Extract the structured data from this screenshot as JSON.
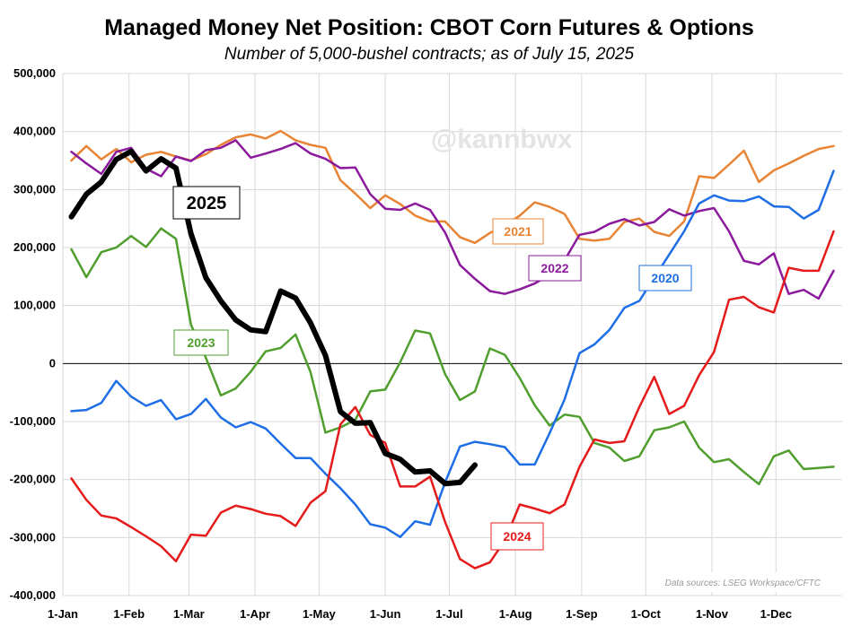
{
  "chart_data": {
    "type": "line",
    "title": "Managed Money Net Position: CBOT Corn Futures & Options",
    "subtitle": "Number of 5,000-bushel contracts; as of July 15, 2025",
    "watermark": "@kannbwx",
    "source": "Data sources: LSEG Workspace/CFTC",
    "ylim": [
      -400000,
      500000
    ],
    "y_ticks": [
      -400000,
      -300000,
      -200000,
      -100000,
      0,
      100000,
      200000,
      300000,
      400000,
      500000
    ],
    "y_tick_labels": [
      "-400,000",
      "-300,000",
      "-200,000",
      "-100,000",
      "0",
      "100,000",
      "200,000",
      "300,000",
      "400,000",
      "500,000"
    ],
    "x_ticks": [
      1,
      32,
      60,
      91,
      121,
      152,
      182,
      213,
      244,
      274,
      305,
      335
    ],
    "x_tick_labels": [
      "1-Jan",
      "1-Feb",
      "1-Mar",
      "1-Apr",
      "1-May",
      "1-Jun",
      "1-Jul",
      "1-Aug",
      "1-Sep",
      "1-Oct",
      "1-Nov",
      "1-Dec"
    ],
    "xlim": [
      1,
      366
    ],
    "series": [
      {
        "name": "2020",
        "color": "#1e6ee6",
        "width": 2.5,
        "label": "2020",
        "label_boxed": true,
        "x": [
          5,
          12,
          19,
          26,
          33,
          40,
          47,
          54,
          61,
          68,
          75,
          82,
          89,
          96,
          103,
          110,
          117,
          124,
          131,
          138,
          145,
          152,
          159,
          166,
          173,
          180,
          187,
          194,
          201,
          208,
          215,
          222,
          229,
          236,
          243,
          250,
          257,
          264,
          271,
          278,
          285,
          292,
          299,
          306,
          313,
          320,
          327,
          334,
          341,
          348,
          355,
          362
        ],
        "values": [
          -82000,
          -80000,
          -68000,
          -30000,
          -57000,
          -73000,
          -63000,
          -96000,
          -87000,
          -61000,
          -93000,
          -110000,
          -101000,
          -112000,
          -138000,
          -163000,
          -163000,
          -190000,
          -215000,
          -243000,
          -277000,
          -283000,
          -299000,
          -272000,
          -278000,
          -205000,
          -143000,
          -135000,
          -139000,
          -144000,
          -174000,
          -174000,
          -120000,
          -62000,
          18000,
          33000,
          58000,
          96000,
          108000,
          148000,
          188000,
          228000,
          276000,
          290000,
          281000,
          280000,
          288000,
          271000,
          270000,
          250000,
          265000,
          332000
        ]
      },
      {
        "name": "2021",
        "color": "#e88434",
        "width": 2.5,
        "label": "2021",
        "label_boxed": true,
        "x": [
          5,
          12,
          19,
          26,
          33,
          40,
          47,
          54,
          61,
          68,
          75,
          82,
          89,
          96,
          103,
          110,
          117,
          124,
          131,
          138,
          145,
          152,
          159,
          166,
          173,
          180,
          187,
          194,
          201,
          208,
          215,
          222,
          229,
          236,
          243,
          250,
          257,
          264,
          271,
          278,
          285,
          292,
          299,
          306,
          313,
          320,
          327,
          334,
          341,
          348,
          355,
          362
        ],
        "values": [
          350000,
          375000,
          352000,
          370000,
          347000,
          360000,
          365000,
          357000,
          350000,
          361000,
          377000,
          390000,
          395000,
          388000,
          401000,
          385000,
          377000,
          372000,
          316000,
          293000,
          268000,
          290000,
          275000,
          255000,
          245000,
          245000,
          218000,
          208000,
          225000,
          238000,
          255000,
          278000,
          270000,
          258000,
          215000,
          212000,
          215000,
          244000,
          250000,
          227000,
          220000,
          245000,
          323000,
          320000,
          343000,
          367000,
          313000,
          333000,
          345000,
          358000,
          370000,
          375000
        ]
      },
      {
        "name": "2022",
        "color": "#8b1a9c",
        "width": 2.5,
        "label": "2022",
        "label_boxed": true,
        "x": [
          5,
          12,
          19,
          26,
          33,
          40,
          47,
          54,
          61,
          68,
          75,
          82,
          89,
          96,
          103,
          110,
          117,
          124,
          131,
          138,
          145,
          152,
          159,
          166,
          173,
          180,
          187,
          194,
          201,
          208,
          215,
          222,
          229,
          236,
          243,
          250,
          257,
          264,
          271,
          278,
          285,
          292,
          299,
          306,
          313,
          320,
          327,
          334,
          341,
          348,
          355,
          362
        ],
        "values": [
          365000,
          345000,
          327000,
          365000,
          372000,
          336000,
          323000,
          357000,
          349000,
          368000,
          372000,
          385000,
          355000,
          362000,
          370000,
          380000,
          362000,
          353000,
          337000,
          338000,
          292000,
          267000,
          265000,
          276000,
          265000,
          226000,
          170000,
          146000,
          125000,
          120000,
          128000,
          138000,
          153000,
          178000,
          222000,
          227000,
          241000,
          249000,
          238000,
          244000,
          266000,
          255000,
          263000,
          268000,
          228000,
          177000,
          171000,
          190000,
          120000,
          127000,
          112000,
          160000
        ]
      },
      {
        "name": "2023",
        "color": "#4f9e2e",
        "width": 2.5,
        "label": "2023",
        "label_boxed": true,
        "x": [
          5,
          12,
          19,
          26,
          33,
          40,
          47,
          54,
          61,
          68,
          75,
          82,
          89,
          96,
          103,
          110,
          117,
          124,
          131,
          138,
          145,
          152,
          159,
          166,
          173,
          180,
          187,
          194,
          201,
          208,
          215,
          222,
          229,
          236,
          243,
          250,
          257,
          264,
          271,
          278,
          285,
          292,
          299,
          306,
          313,
          320,
          327,
          334,
          341,
          348,
          355,
          362
        ],
        "values": [
          197000,
          149000,
          192000,
          200000,
          220000,
          201000,
          233000,
          215000,
          67000,
          10000,
          -55000,
          -43000,
          -14000,
          21000,
          27000,
          50000,
          -15000,
          -119000,
          -110000,
          -97000,
          -48000,
          -45000,
          2000,
          57000,
          52000,
          -18000,
          -63000,
          -48000,
          26000,
          15000,
          -25000,
          -72000,
          -107000,
          -88000,
          -92000,
          -137000,
          -145000,
          -168000,
          -160000,
          -115000,
          -110000,
          -100000,
          -145000,
          -170000,
          -165000,
          -187000,
          -208000,
          -160000,
          -150000,
          -182000,
          -180000,
          -178000
        ]
      },
      {
        "name": "2024",
        "color": "#e51b1b",
        "width": 2.5,
        "label": "2024",
        "label_boxed": true,
        "x": [
          5,
          12,
          19,
          26,
          33,
          40,
          47,
          54,
          61,
          68,
          75,
          82,
          89,
          96,
          103,
          110,
          117,
          124,
          131,
          138,
          145,
          152,
          159,
          166,
          173,
          180,
          187,
          194,
          201,
          208,
          215,
          222,
          229,
          236,
          243,
          250,
          257,
          264,
          271,
          278,
          285,
          292,
          299,
          306,
          313,
          320,
          327,
          334,
          341,
          348,
          355,
          362
        ],
        "values": [
          -198000,
          -235000,
          -262000,
          -267000,
          -282000,
          -298000,
          -315000,
          -341000,
          -295000,
          -297000,
          -257000,
          -245000,
          -251000,
          -259000,
          -263000,
          -280000,
          -240000,
          -220000,
          -105000,
          -75000,
          -123000,
          -137000,
          -212000,
          -212000,
          -195000,
          -273000,
          -337000,
          -353000,
          -343000,
          -305000,
          -243000,
          -250000,
          -258000,
          -243000,
          -178000,
          -131000,
          -137000,
          -134000,
          -75000,
          -23000,
          -87000,
          -73000,
          -20000,
          20000,
          110000,
          115000,
          97000,
          88000,
          165000,
          160000,
          160000,
          228000
        ]
      },
      {
        "name": "2025",
        "color": "#000000",
        "width": 6,
        "label": "2025",
        "label_boxed": true,
        "x": [
          5,
          12,
          19,
          26,
          33,
          40,
          47,
          54,
          61,
          68,
          75,
          82,
          89,
          96,
          103,
          110,
          117,
          124,
          131,
          138,
          145,
          152,
          159,
          166,
          173,
          180,
          187,
          194
        ],
        "values": [
          253000,
          292000,
          313000,
          352000,
          366000,
          332000,
          353000,
          337000,
          224000,
          148000,
          108000,
          75000,
          58000,
          55000,
          125000,
          113000,
          70000,
          14000,
          -83000,
          -103000,
          -102000,
          -155000,
          -165000,
          -187000,
          -185000,
          -207000,
          -205000,
          -175000
        ]
      }
    ]
  }
}
